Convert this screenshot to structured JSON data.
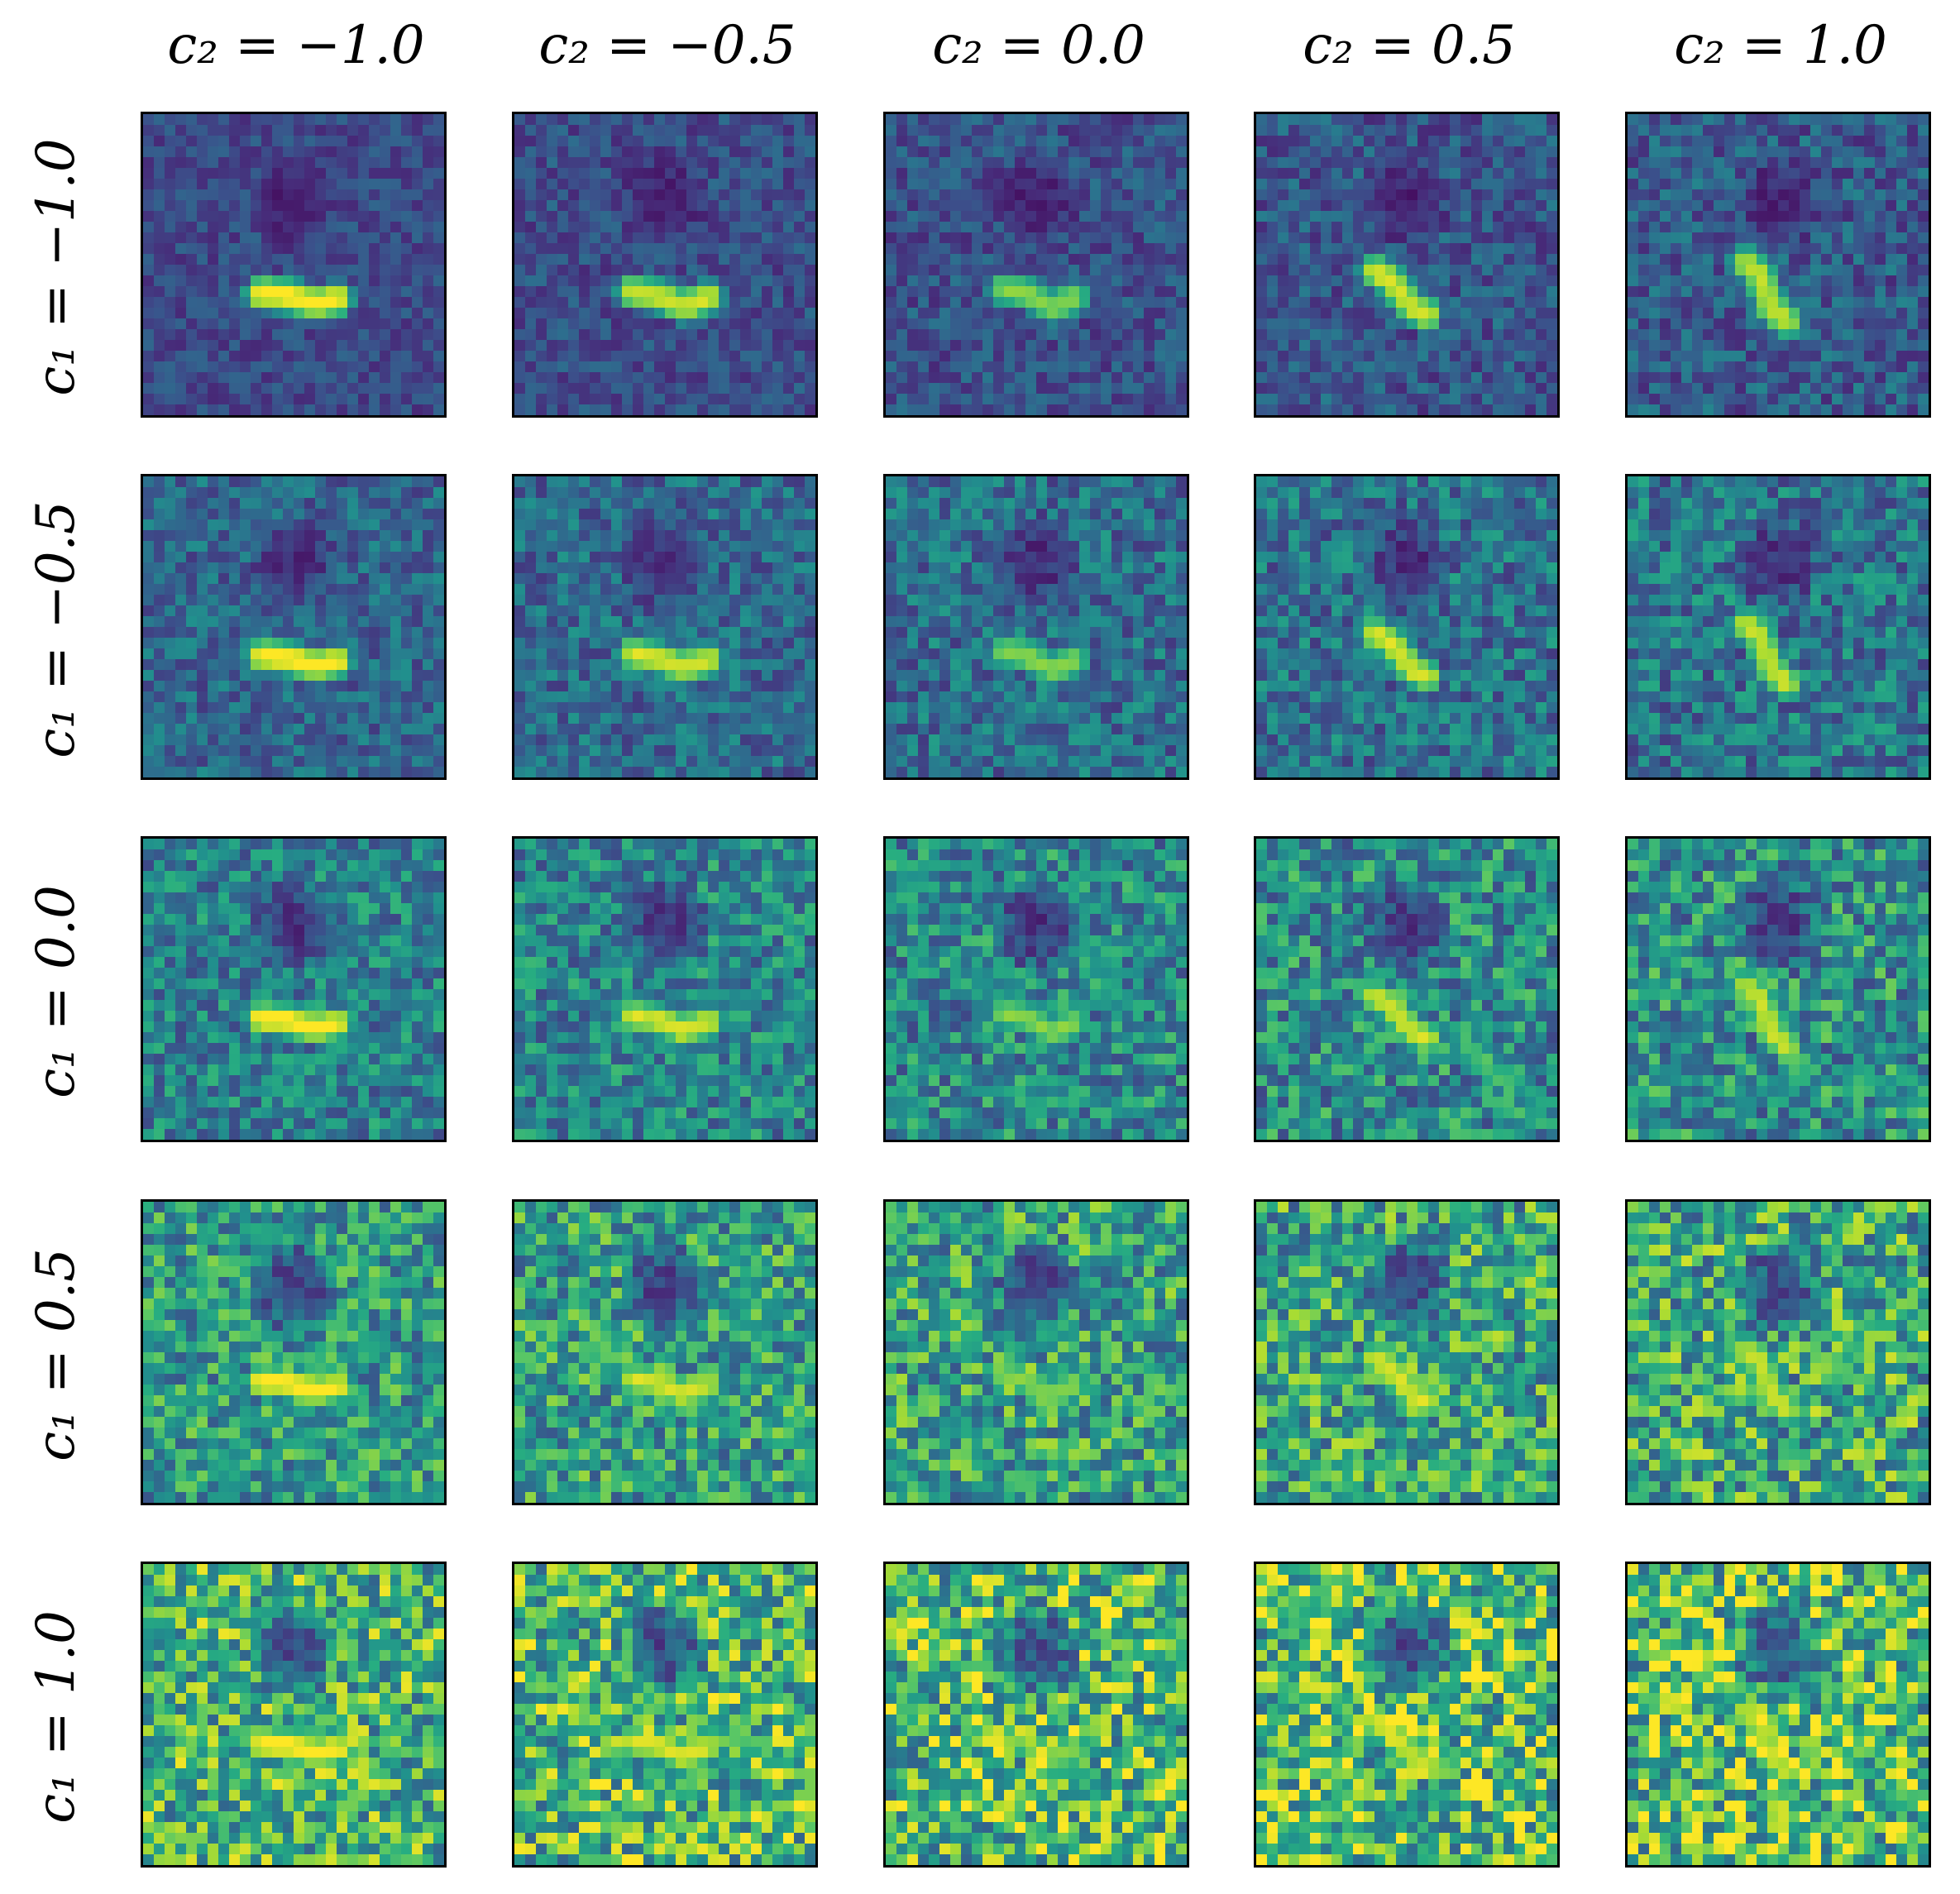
{
  "chart_data": {
    "type": "heatmap",
    "title": "",
    "colormap": "viridis",
    "column_labels": [
      "c₂ = −1.0",
      "c₂ = −0.5",
      "c₂ = 0.0",
      "c₂ = 0.5",
      "c₂ = 1.0"
    ],
    "row_labels": [
      "c₁ = −1.0",
      "c₁ = −0.5",
      "c₁ = 0.0",
      "c₁ = 0.5",
      "c₁ = 1.0"
    ],
    "c1_values": [
      -1.0,
      -0.5,
      0.0,
      0.5,
      1.0
    ],
    "c2_values": [
      -1.0,
      -0.5,
      0.0,
      0.5,
      1.0
    ],
    "pixel_grid": [
      28,
      28
    ],
    "ticks": "none",
    "colors": {
      "low": "#440154",
      "mid": "#21918c",
      "high": "#fde725",
      "frame": "#000000"
    }
  }
}
